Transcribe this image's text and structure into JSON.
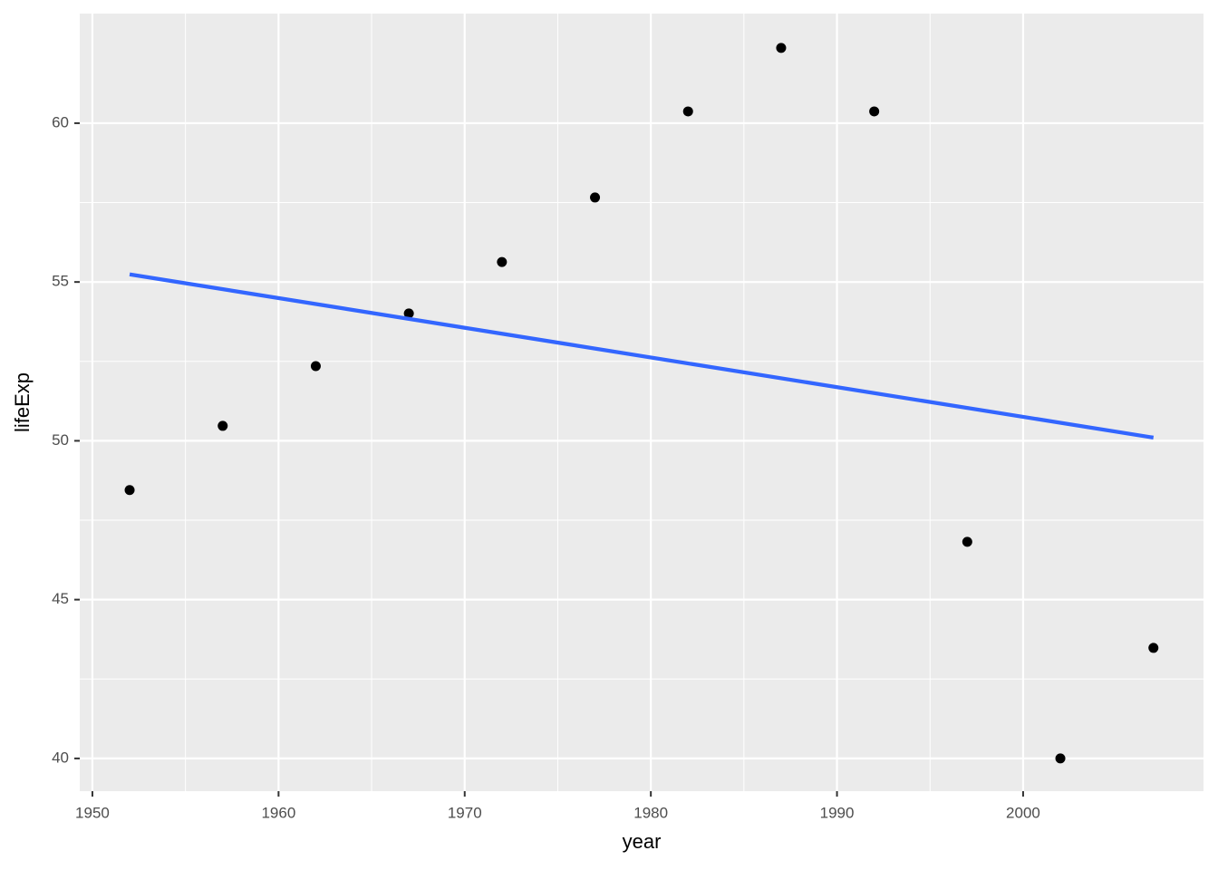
{
  "chart_data": {
    "type": "scatter",
    "x_label": "year",
    "y_label": "lifeExp",
    "x": [
      1952,
      1957,
      1962,
      1967,
      1972,
      1977,
      1982,
      1987,
      1992,
      1997,
      2002,
      2007
    ],
    "series": [
      {
        "color": "#000000",
        "values": [
          48.45,
          50.47,
          52.35,
          54.01,
          55.63,
          57.66,
          60.37,
          62.37,
          60.37,
          46.82,
          40.0,
          43.48
        ]
      }
    ],
    "trend": {
      "x": [
        1952,
        2007
      ],
      "values": [
        55.24,
        50.1
      ],
      "color": "#3366ff"
    },
    "xlim": [
      1949.32,
      2009.69
    ],
    "xticks": [
      1950,
      1960,
      1970,
      1980,
      1990,
      2000
    ],
    "ylim": [
      38.97,
      63.45
    ],
    "yticks": [
      40,
      45,
      50,
      55,
      60
    ],
    "grid": true
  }
}
